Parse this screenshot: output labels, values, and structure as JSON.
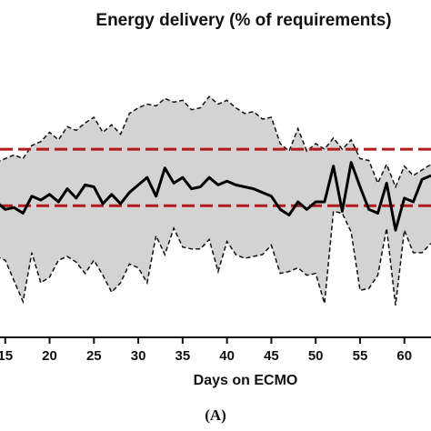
{
  "chart_data": {
    "type": "line",
    "title": "Energy delivery (% of requirements)",
    "xlabel": "Days on ECMO",
    "ylabel": "",
    "panel_label": "(A)",
    "xlim": [
      14,
      63
    ],
    "ylim": [
      0,
      160
    ],
    "x_ticks": [
      15,
      20,
      25,
      30,
      35,
      40,
      45,
      50,
      55,
      60
    ],
    "grid": false,
    "colors": {
      "median": "#000000",
      "band": "#d3d3d3",
      "reference": "#b01c1c"
    },
    "reference_lines": [
      {
        "y": 100,
        "style": "dashed"
      },
      {
        "y": 70,
        "style": "dashed"
      }
    ],
    "series": [
      {
        "role": "median",
        "x": [
          14,
          15,
          16,
          17,
          18,
          19,
          20,
          21,
          22,
          23,
          24,
          25,
          26,
          27,
          28,
          29,
          30,
          31,
          32,
          33,
          34,
          35,
          36,
          37,
          38,
          39,
          40,
          41,
          42,
          43,
          44,
          45,
          46,
          47,
          48,
          49,
          50,
          51,
          52,
          53,
          54,
          55,
          56,
          57,
          58,
          59,
          60,
          61,
          62,
          63
        ],
        "y": [
          72,
          68,
          69,
          66,
          75,
          73,
          76,
          72,
          79,
          74,
          81,
          80,
          71,
          76,
          71,
          77,
          81,
          85,
          75,
          90,
          82,
          85,
          79,
          80,
          85,
          81,
          83,
          81,
          80,
          79,
          77,
          75,
          68,
          65,
          72,
          68,
          72,
          72,
          91,
          67,
          93,
          80,
          68,
          66,
          82,
          57,
          74,
          72,
          84,
          86
        ]
      },
      {
        "role": "upper",
        "x": [
          14,
          15,
          16,
          17,
          18,
          19,
          20,
          21,
          22,
          23,
          24,
          25,
          26,
          27,
          28,
          29,
          30,
          31,
          32,
          33,
          34,
          35,
          36,
          37,
          38,
          39,
          40,
          41,
          42,
          43,
          44,
          45,
          46,
          47,
          48,
          49,
          50,
          51,
          52,
          53,
          54,
          55,
          56,
          57,
          58,
          59,
          60,
          61,
          62,
          63
        ],
        "y": [
          93,
          95,
          97,
          95,
          102,
          104,
          109,
          105,
          112,
          110,
          114,
          117,
          109,
          113,
          108,
          119,
          122,
          124,
          123,
          127,
          125,
          126,
          121,
          122,
          128,
          124,
          126,
          122,
          119,
          120,
          116,
          117,
          103,
          99,
          111,
          99,
          103,
          100,
          106,
          100,
          105,
          95,
          94,
          82,
          92,
          80,
          91,
          86,
          89,
          92
        ]
      },
      {
        "role": "lower",
        "x": [
          14,
          15,
          16,
          17,
          18,
          19,
          20,
          21,
          22,
          23,
          24,
          25,
          26,
          27,
          28,
          29,
          30,
          31,
          32,
          33,
          34,
          35,
          36,
          37,
          38,
          39,
          40,
          41,
          42,
          43,
          44,
          45,
          46,
          47,
          48,
          49,
          50,
          51,
          52,
          53,
          54,
          55,
          56,
          57,
          58,
          59,
          60,
          61,
          62,
          63
        ],
        "y": [
          43,
          41,
          30,
          19,
          45,
          29,
          32,
          41,
          43,
          40,
          34,
          41,
          33,
          24,
          29,
          39,
          37,
          29,
          54,
          44,
          58,
          48,
          47,
          47,
          52,
          35,
          51,
          44,
          42,
          43,
          44,
          49,
          34,
          35,
          37,
          33,
          34,
          18,
          67,
          66,
          56,
          25,
          26,
          33,
          58,
          17,
          57,
          45,
          45,
          50
        ]
      }
    ]
  }
}
